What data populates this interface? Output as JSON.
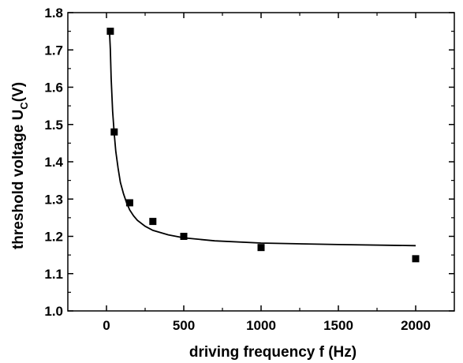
{
  "chart_data": {
    "type": "scatter",
    "title": "",
    "xlabel": "driving frequency  f (Hz)",
    "ylabel": "threshold voltage  U_C(V)",
    "ylabel_main": "threshold voltage  U",
    "ylabel_sub": "C",
    "ylabel_unit": "(V)",
    "xlim": [
      -250,
      2250
    ],
    "ylim": [
      1.0,
      1.8
    ],
    "xticks": [
      0,
      500,
      1000,
      1500,
      2000
    ],
    "xtick_labels": [
      "0",
      "500",
      "1000",
      "1500",
      "2000"
    ],
    "yticks": [
      1.0,
      1.1,
      1.2,
      1.3,
      1.4,
      1.5,
      1.6,
      1.7,
      1.8
    ],
    "ytick_labels": [
      "1.0",
      "1.1",
      "1.2",
      "1.3",
      "1.4",
      "1.5",
      "1.6",
      "1.7",
      "1.8"
    ],
    "grid": false,
    "series": [
      {
        "kind": "points",
        "marker": "square",
        "x": [
          25,
          50,
          150,
          300,
          500,
          1000,
          2000
        ],
        "y": [
          1.75,
          1.48,
          1.29,
          1.24,
          1.2,
          1.17,
          1.14
        ]
      },
      {
        "kind": "fit-line",
        "x": [
          20,
          25,
          30,
          40,
          50,
          60,
          75,
          90,
          110,
          130,
          150,
          175,
          200,
          250,
          300,
          400,
          500,
          700,
          1000,
          1500,
          2000
        ],
        "y": [
          1.746,
          1.701,
          1.625,
          1.535,
          1.476,
          1.428,
          1.383,
          1.345,
          1.314,
          1.29,
          1.271,
          1.255,
          1.243,
          1.227,
          1.216,
          1.204,
          1.196,
          1.188,
          1.182,
          1.178,
          1.175
        ]
      }
    ]
  }
}
